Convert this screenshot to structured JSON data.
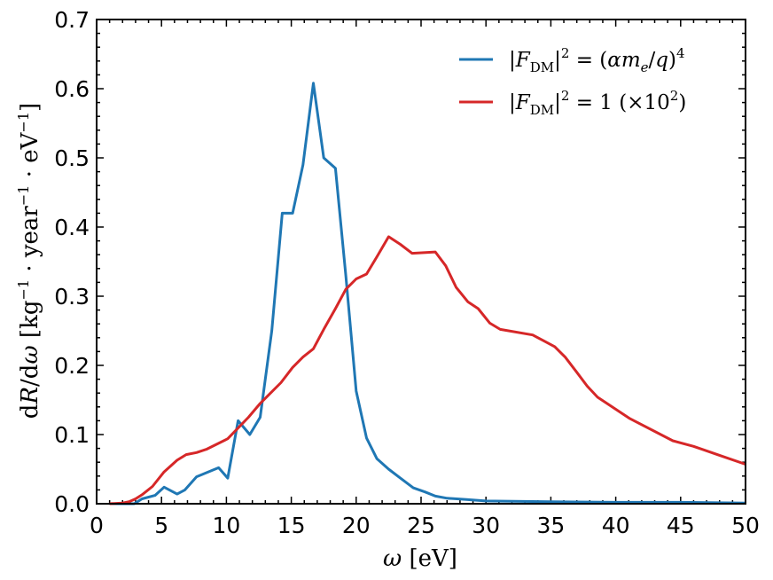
{
  "chart_data": {
    "type": "line",
    "xlabel": "ω [eV]",
    "ylabel": "dR/dω [kg⁻¹ · year⁻¹ · eV⁻¹]",
    "xlim": [
      0,
      50
    ],
    "ylim": [
      0,
      0.7
    ],
    "xticks": [
      0,
      5,
      10,
      15,
      20,
      25,
      30,
      35,
      40,
      45,
      50
    ],
    "yticks": [
      0.0,
      0.1,
      0.2,
      0.3,
      0.4,
      0.5,
      0.6,
      0.7
    ],
    "xtick_labels": [
      "0",
      "5",
      "10",
      "15",
      "20",
      "25",
      "30",
      "35",
      "40",
      "45",
      "50"
    ],
    "ytick_labels": [
      "0.0",
      "0.1",
      "0.2",
      "0.3",
      "0.4",
      "0.5",
      "0.6",
      "0.7"
    ],
    "grid": false,
    "legend_position": "top-right",
    "series": [
      {
        "name": "|F_DM|² = (αm_e/q)⁴",
        "color": "#1f77b4",
        "x": [
          1,
          1.9,
          2.9,
          3.5,
          4.5,
          5.2,
          6.2,
          6.8,
          7.7,
          9.4,
          10.1,
          10.9,
          11.8,
          12.6,
          13.5,
          14.3,
          15.1,
          15.9,
          16.7,
          17.5,
          18.4,
          19.2,
          20.0,
          20.8,
          21.6,
          22.5,
          23.4,
          24.4,
          25.3,
          26.1,
          27.0,
          28.5,
          30,
          35,
          40,
          45,
          50
        ],
        "y": [
          0.0,
          0.0,
          0.0,
          0.007,
          0.012,
          0.024,
          0.014,
          0.02,
          0.039,
          0.052,
          0.037,
          0.12,
          0.1,
          0.125,
          0.25,
          0.42,
          0.42,
          0.49,
          0.608,
          0.5,
          0.485,
          0.33,
          0.163,
          0.095,
          0.065,
          0.05,
          0.037,
          0.023,
          0.017,
          0.011,
          0.008,
          0.006,
          0.004,
          0.003,
          0.002,
          0.002,
          0.001
        ]
      },
      {
        "name": "|F_DM|² = 1 (×10²)",
        "color": "#d62728",
        "x": [
          1,
          2,
          2.5,
          3,
          3.5,
          4.3,
          5.2,
          6.2,
          6.9,
          7.7,
          8.5,
          10.1,
          11.7,
          12.6,
          13.4,
          14.2,
          15.1,
          15.9,
          16.7,
          17.5,
          18.4,
          19.2,
          20,
          20.8,
          21.6,
          22.5,
          23.4,
          24.3,
          26.1,
          26.9,
          27.7,
          28.6,
          29.4,
          30.3,
          31.1,
          33.6,
          34.5,
          35.3,
          36.1,
          37.0,
          37.8,
          38.6,
          41.1,
          44.4,
          46.0,
          48.0,
          50
        ],
        "y": [
          0.0,
          0.001,
          0.003,
          0.007,
          0.013,
          0.025,
          0.046,
          0.063,
          0.071,
          0.074,
          0.079,
          0.094,
          0.125,
          0.145,
          0.16,
          0.175,
          0.197,
          0.212,
          0.224,
          0.252,
          0.282,
          0.31,
          0.325,
          0.332,
          0.357,
          0.386,
          0.375,
          0.362,
          0.364,
          0.344,
          0.313,
          0.292,
          0.282,
          0.261,
          0.252,
          0.244,
          0.235,
          0.227,
          0.212,
          0.19,
          0.17,
          0.154,
          0.123,
          0.091,
          0.083,
          0.07,
          0.057
        ]
      }
    ]
  }
}
